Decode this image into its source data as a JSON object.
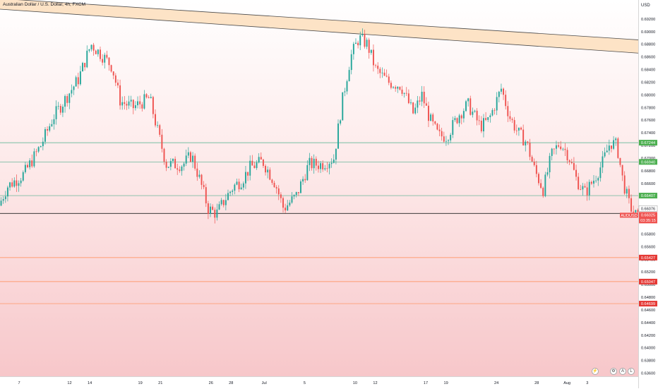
{
  "header": {
    "title": "Australian Dollar / U.S. Dollar, 4h, FXCM",
    "currency": "USD"
  },
  "colors": {
    "up": "#26a69a",
    "down": "#ef5350",
    "channel_fill": "#fde0c0",
    "channel_line": "#4a4a4a",
    "support_line": "#4caf8c",
    "lower_line": "#ff8a50",
    "level_tag_green": "#4caf50",
    "level_tag_red": "#e53935",
    "symbol_tag": "#ef5350"
  },
  "chart_data": {
    "type": "candlestick",
    "symbol": "AUDUSD",
    "timeframe": "4h",
    "source": "FXCM",
    "ylim": [
      0.6355,
      0.695
    ],
    "x_range_days": [
      0,
      66.5
    ],
    "x_ticks": [
      {
        "day": 0,
        "label": "7"
      },
      {
        "day": 5,
        "label": "12"
      },
      {
        "day": 7,
        "label": "14"
      },
      {
        "day": 12,
        "label": "19"
      },
      {
        "day": 14,
        "label": "21"
      },
      {
        "day": 19,
        "label": "26"
      },
      {
        "day": 21,
        "label": "28"
      },
      {
        "day": 24,
        "label": "Jul"
      },
      {
        "day": 28,
        "label": "5"
      },
      {
        "day": 33,
        "label": "10"
      },
      {
        "day": 35,
        "label": "12"
      },
      {
        "day": 40,
        "label": "17"
      },
      {
        "day": 42,
        "label": "19"
      },
      {
        "day": 47,
        "label": "24"
      },
      {
        "day": 51,
        "label": "28"
      },
      {
        "day": 54,
        "label": "Aug"
      },
      {
        "day": 56,
        "label": "3"
      }
    ],
    "y_ticks": [
      0.692,
      0.69,
      0.688,
      0.686,
      0.684,
      0.682,
      0.68,
      0.678,
      0.676,
      0.674,
      0.672,
      0.67,
      0.668,
      0.666,
      0.664,
      0.662,
      0.658,
      0.656,
      0.654,
      0.652,
      0.65,
      0.648,
      0.646,
      0.644,
      0.642,
      0.64,
      0.638,
      0.636
    ],
    "y_tick_labels": [
      "0.69200",
      "0.69000",
      "0.68800",
      "0.68600",
      "0.68400",
      "0.68200",
      "0.68000",
      "0.67800",
      "0.67600",
      "0.67400",
      "0.67200",
      "0.67000",
      "0.66800",
      "0.66600",
      "0.66400",
      "0.66200",
      "0.65800",
      "0.65600",
      "0.65400",
      "0.65200",
      "0.65000",
      "0.64800",
      "0.64600",
      "0.64400",
      "0.64200",
      "0.64000",
      "0.63800",
      "0.63600"
    ],
    "channel": {
      "upper": [
        [
          0,
          0.695
        ],
        [
          66.5,
          0.6887
        ]
      ],
      "lower": [
        [
          0,
          0.695
        ],
        [
          66.5,
          0.6866
        ]
      ]
    },
    "horizontal_levels": [
      {
        "value": 0.67244,
        "label": "0.67244",
        "style": "green"
      },
      {
        "value": 0.6694,
        "label": "0.66940",
        "style": "green"
      },
      {
        "value": 0.66407,
        "label": "0.66407",
        "style": "green"
      },
      {
        "value": 0.66125,
        "label": "",
        "style": "black"
      },
      {
        "value": 0.65427,
        "label": "0.65427",
        "style": "red"
      },
      {
        "value": 0.65047,
        "label": "0.65047",
        "style": "red"
      },
      {
        "value": 0.64699,
        "label": "0.64699",
        "style": "red"
      }
    ],
    "last_price": {
      "symbol": "AUDUSD",
      "value": "0.66025",
      "countdown": "03:35:15",
      "prev_value": "0.66076"
    },
    "anchors": [
      [
        0.0,
        0.6625
      ],
      [
        1.0,
        0.6655
      ],
      [
        3.0,
        0.6675
      ],
      [
        5.0,
        0.672
      ],
      [
        6.5,
        0.6765
      ],
      [
        8.0,
        0.6795
      ],
      [
        9.5,
        0.6825
      ],
      [
        11.0,
        0.688
      ],
      [
        12.5,
        0.686
      ],
      [
        13.5,
        0.6845
      ],
      [
        14.5,
        0.679
      ],
      [
        16.0,
        0.678
      ],
      [
        18.0,
        0.6795
      ],
      [
        19.0,
        0.674
      ],
      [
        20.0,
        0.669
      ],
      [
        22.0,
        0.669
      ],
      [
        23.0,
        0.6705
      ],
      [
        24.0,
        0.6665
      ],
      [
        25.0,
        0.662
      ],
      [
        26.0,
        0.6612
      ],
      [
        27.0,
        0.6635
      ],
      [
        28.0,
        0.6655
      ],
      [
        29.0,
        0.6665
      ],
      [
        30.0,
        0.6685
      ],
      [
        31.5,
        0.6695
      ],
      [
        33.0,
        0.666
      ],
      [
        34.0,
        0.662
      ],
      [
        35.5,
        0.664
      ],
      [
        37.0,
        0.669
      ],
      [
        38.5,
        0.669
      ],
      [
        40.0,
        0.67
      ],
      [
        41.0,
        0.679
      ],
      [
        42.0,
        0.686
      ],
      [
        43.0,
        0.689
      ],
      [
        44.0,
        0.688
      ],
      [
        45.0,
        0.684
      ],
      [
        46.5,
        0.682
      ],
      [
        48.0,
        0.6815
      ],
      [
        49.5,
        0.677
      ],
      [
        50.5,
        0.68
      ],
      [
        51.5,
        0.676
      ],
      [
        52.5,
        0.6735
      ],
      [
        53.5,
        0.6735
      ],
      [
        55.0,
        0.677
      ],
      [
        56.0,
        0.6785
      ],
      [
        57.5,
        0.675
      ],
      [
        58.5,
        0.676
      ],
      [
        60.0,
        0.681
      ],
      [
        61.0,
        0.6765
      ],
      [
        62.0,
        0.674
      ],
      [
        63.0,
        0.6725
      ],
      [
        64.0,
        0.668
      ],
      [
        65.0,
        0.665
      ],
      [
        66.0,
        0.6705
      ],
      [
        67.0,
        0.6725
      ],
      [
        68.0,
        0.6705
      ],
      [
        69.0,
        0.6665
      ],
      [
        70.0,
        0.6645
      ],
      [
        71.0,
        0.6665
      ],
      [
        72.0,
        0.669
      ],
      [
        73.0,
        0.6725
      ],
      [
        73.8,
        0.672
      ],
      [
        74.5,
        0.6665
      ],
      [
        75.3,
        0.6625
      ],
      [
        76.3,
        0.6605
      ]
    ],
    "anchor_x_scale": 0.8725
  }
}
